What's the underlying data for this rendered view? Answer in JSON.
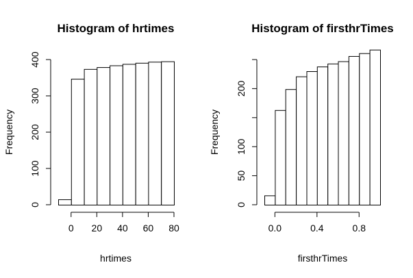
{
  "chart_data": [
    {
      "type": "bar",
      "title": "Histogram of hrtimes",
      "xlabel": "hrtimes",
      "ylabel": "Frequency",
      "x_ticks": [
        0,
        20,
        40,
        60,
        80
      ],
      "x_tick_labels": [
        "0",
        "20",
        "40",
        "60",
        "80"
      ],
      "y_ticks": [
        0,
        100,
        200,
        300,
        400
      ],
      "y_tick_labels": [
        "0",
        "100",
        "200",
        "300",
        "400"
      ],
      "xlim": [
        -10,
        80
      ],
      "ylim": [
        0,
        400
      ],
      "bins": [
        {
          "from": -10,
          "to": 0,
          "value": 15
        },
        {
          "from": 0,
          "to": 10,
          "value": 347
        },
        {
          "from": 10,
          "to": 20,
          "value": 374
        },
        {
          "from": 20,
          "to": 30,
          "value": 379
        },
        {
          "from": 30,
          "to": 40,
          "value": 384
        },
        {
          "from": 40,
          "to": 50,
          "value": 388
        },
        {
          "from": 50,
          "to": 60,
          "value": 391
        },
        {
          "from": 60,
          "to": 70,
          "value": 394
        },
        {
          "from": 70,
          "to": 80,
          "value": 395
        }
      ]
    },
    {
      "type": "bar",
      "title": "Histogram of firsthrTimes",
      "xlabel": "firsthrTimes",
      "ylabel": "Frequency",
      "x_ticks": [
        0.0,
        0.4,
        0.8
      ],
      "x_tick_labels": [
        "0.0",
        "0.4",
        "0.8"
      ],
      "y_ticks": [
        0,
        50,
        100,
        150,
        200,
        250
      ],
      "y_tick_labels": [
        "0",
        "50",
        "100",
        "",
        "200",
        ""
      ],
      "xlim": [
        -0.1,
        1.0
      ],
      "ylim": [
        0,
        250
      ],
      "bins": [
        {
          "from": -0.1,
          "to": 0.0,
          "value": 16
        },
        {
          "from": 0.0,
          "to": 0.1,
          "value": 163
        },
        {
          "from": 0.1,
          "to": 0.2,
          "value": 199
        },
        {
          "from": 0.2,
          "to": 0.3,
          "value": 221
        },
        {
          "from": 0.3,
          "to": 0.4,
          "value": 230
        },
        {
          "from": 0.4,
          "to": 0.5,
          "value": 238
        },
        {
          "from": 0.5,
          "to": 0.6,
          "value": 243
        },
        {
          "from": 0.6,
          "to": 0.7,
          "value": 247
        },
        {
          "from": 0.7,
          "to": 0.8,
          "value": 256
        },
        {
          "from": 0.8,
          "to": 0.9,
          "value": 261
        },
        {
          "from": 0.9,
          "to": 1.0,
          "value": 267
        }
      ]
    }
  ]
}
